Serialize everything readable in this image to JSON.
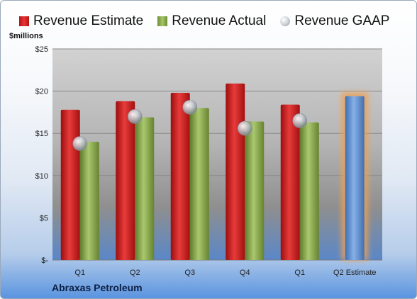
{
  "chart_data": {
    "type": "bar",
    "title": "",
    "unit_label": "$millions",
    "company": "Abraxas Petroleum",
    "categories": [
      "Q1",
      "Q2",
      "Q3",
      "Q4",
      "Q1",
      "Q2 Estimate"
    ],
    "ylim": [
      0,
      25
    ],
    "yticks": [
      0,
      5,
      10,
      15,
      20,
      25
    ],
    "ytick_labels": [
      "$-",
      "$5",
      "$10",
      "$15",
      "$20",
      "$25"
    ],
    "series": [
      {
        "name": "Revenue Estimate",
        "type": "bar",
        "color": "#d42020",
        "values": [
          17.8,
          18.8,
          19.8,
          20.9,
          18.4,
          null
        ]
      },
      {
        "name": "Revenue Actual",
        "type": "bar",
        "color": "#8aab4e",
        "values": [
          14.0,
          16.9,
          18.0,
          16.4,
          16.3,
          null
        ]
      },
      {
        "name": "Revenue GAAP",
        "type": "marker",
        "color": "#c4c9cf",
        "values": [
          13.8,
          17.0,
          18.1,
          15.6,
          16.5,
          null
        ]
      }
    ],
    "highlight": {
      "category_index": 5,
      "value": 19.4,
      "color": "#5b8fd4",
      "glow": "#f0a050"
    },
    "legend_position": "top",
    "grid": true
  }
}
